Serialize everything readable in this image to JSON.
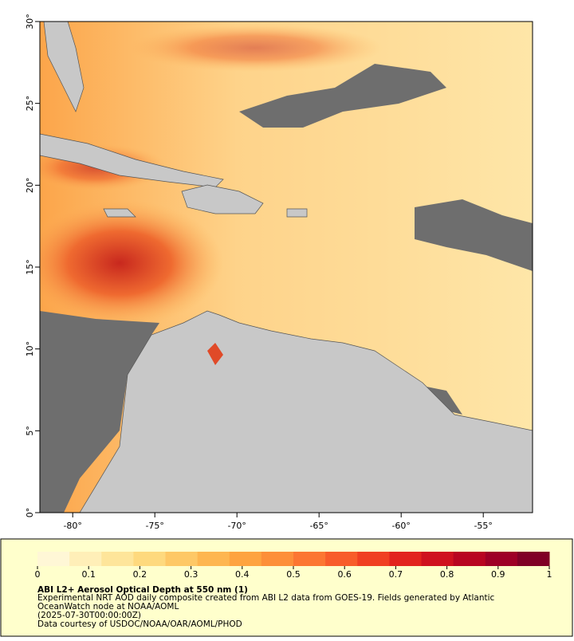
{
  "chart_data": {
    "type": "map",
    "xlim": [
      -82,
      -52
    ],
    "ylim": [
      0,
      30
    ],
    "xticks": [
      {
        "value": -80,
        "label": "-80°"
      },
      {
        "value": -75,
        "label": "-75°"
      },
      {
        "value": -70,
        "label": "-70°"
      },
      {
        "value": -65,
        "label": "-65°"
      },
      {
        "value": -60,
        "label": "-60°"
      },
      {
        "value": -55,
        "label": "-55°"
      }
    ],
    "yticks": [
      {
        "value": 0,
        "label": "0°"
      },
      {
        "value": 5,
        "label": "5°"
      },
      {
        "value": 10,
        "label": "10°"
      },
      {
        "value": 15,
        "label": "15°"
      },
      {
        "value": 20,
        "label": "20°"
      },
      {
        "value": 25,
        "label": "25°"
      },
      {
        "value": 30,
        "label": "30°"
      }
    ],
    "colorbar": {
      "range": [
        0,
        1
      ],
      "ticks": [
        0,
        0.1,
        0.2,
        0.3,
        0.4,
        0.5,
        0.6,
        0.7,
        0.8,
        0.9,
        1
      ],
      "colors": [
        "#fff7d6",
        "#ffefb8",
        "#fee59a",
        "#fed97e",
        "#fec866",
        "#feb650",
        "#fea340",
        "#fd8f39",
        "#fc7632",
        "#f85c2a",
        "#f03f22",
        "#e2231e",
        "#cf111f",
        "#b80521",
        "#9e0026",
        "#800026"
      ]
    },
    "title": "ABI L2+ Aerosol Optical Depth at 550 nm (1)",
    "caption": [
      "Experimental NRT AOD daily composite created from ABI L2 data from GOES-19. Fields generated by Atlantic",
      "OceanWatch node at NOAA/AOML",
      "(2025-07-30T00:00:00Z)",
      "Data courtesy of USDOC/NOAA/OAR/AOML/PHOD"
    ]
  }
}
